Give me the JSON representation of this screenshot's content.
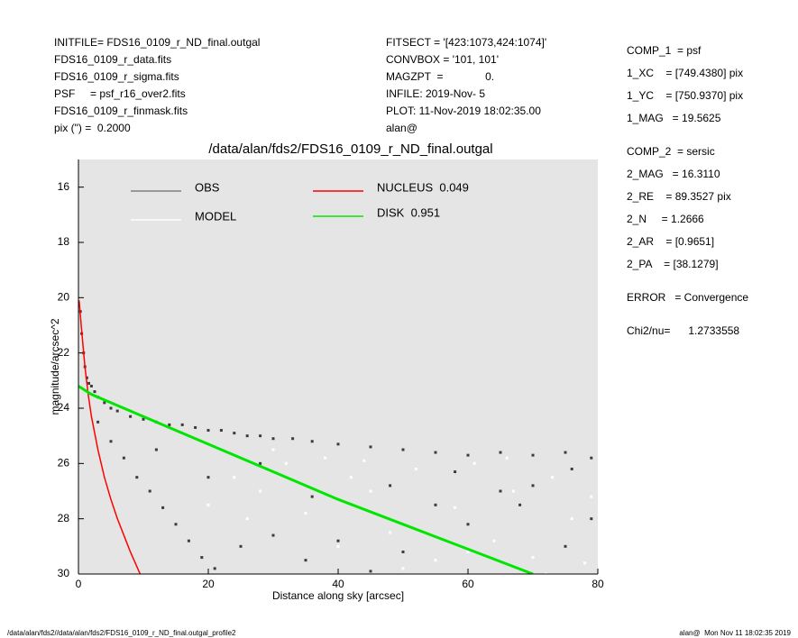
{
  "header": {
    "left": [
      "INITFILE= FDS16_0109_r_ND_final.outgal",
      "FDS16_0109_r_data.fits",
      "FDS16_0109_r_sigma.fits",
      "PSF     = psf_r16_over2.fits",
      "FDS16_0109_r_finmask.fits",
      "pix (\") =  0.2000"
    ],
    "middle": [
      "FITSECT = '[423:1073,424:1074]'",
      "CONVBOX = '101, 101'",
      "MAGZPT  =              0.",
      "INFILE: 2019-Nov- 5",
      "PLOT: 11-Nov-2019 18:02:35.00",
      "alan@"
    ]
  },
  "params": [
    "COMP_1  = psf",
    "1_XC    = [749.4380] pix",
    "1_YC    = [750.9370] pix",
    "1_MAG   = 19.5625",
    "COMP_2  = sersic",
    "2_MAG   = 16.3110",
    "2_RE    = 89.3527 pix",
    "2_N     = 1.2666",
    "2_AR    = [0.9651]",
    "2_PA    = [38.1279]",
    "ERROR   = Convergence",
    "Chi2/nu=      1.2733558"
  ],
  "footer": {
    "left": "/data/alan/fds2//data/alan/fds2/FDS16_0109_r_ND_final.outgal_profile2",
    "right": "alan@  Mon Nov 11 18:02:35 2019"
  },
  "chart_data": {
    "type": "scatter",
    "title": "/data/alan/fds2/FDS16_0109_r_ND_final.outgal",
    "x_label": "Distance along sky [arcsec]",
    "y_label": "magnitude/arcsec^2",
    "xlim": [
      0,
      80
    ],
    "xticks": [
      0,
      20,
      40,
      60,
      80
    ],
    "ylim": [
      15,
      30
    ],
    "yticks": [
      16,
      18,
      20,
      22,
      24,
      26,
      28,
      30
    ],
    "y_inverted": true,
    "grid": false,
    "series": [
      {
        "name": "OBS",
        "type": "scatter",
        "color": "#808080",
        "point_color": "#3c3c3c",
        "x": [
          0.3,
          0.5,
          0.8,
          1,
          1.3,
          1.6,
          2,
          2.5,
          3,
          4,
          5,
          6,
          8,
          10,
          12,
          14,
          16,
          18,
          20,
          22,
          24,
          26,
          28,
          30,
          33,
          36,
          40,
          45,
          50,
          55,
          60,
          65,
          70,
          75,
          79,
          3,
          5,
          7,
          9,
          11,
          13,
          15,
          17,
          19,
          21,
          25,
          30,
          35,
          40,
          45,
          50,
          55,
          60,
          65,
          70,
          75,
          79,
          12,
          20,
          28,
          36,
          48,
          58,
          68,
          76
        ],
        "values": [
          20.5,
          21.3,
          22,
          22.5,
          22.9,
          23.1,
          23.2,
          23.4,
          23.6,
          23.8,
          24,
          24.1,
          24.3,
          24.4,
          24.5,
          24.6,
          24.6,
          24.7,
          24.8,
          24.8,
          24.9,
          25,
          25,
          25.1,
          25.1,
          25.2,
          25.3,
          25.4,
          25.5,
          25.6,
          25.7,
          25.6,
          25.7,
          25.6,
          25.8,
          24.5,
          25.2,
          25.8,
          26.5,
          27,
          27.6,
          28.2,
          28.8,
          29.4,
          29.8,
          29,
          28.6,
          29.5,
          28.8,
          29.9,
          29.2,
          27.5,
          28.2,
          27,
          26.8,
          29,
          28,
          25.5,
          26.5,
          26,
          27.2,
          26.8,
          26.3,
          27.5,
          26.2
        ]
      },
      {
        "name": "MODEL",
        "type": "scatter",
        "color": "#ffffff",
        "point_color": "#ffffff",
        "x": [
          20,
          24,
          28,
          32,
          35,
          38,
          42,
          45,
          48,
          52,
          55,
          58,
          61,
          64,
          67,
          70,
          73,
          76,
          79,
          30,
          40,
          50,
          60,
          72,
          78,
          44,
          26,
          66
        ],
        "values": [
          27.5,
          26.5,
          27,
          26,
          27.8,
          25.8,
          26.5,
          27,
          28.5,
          26.2,
          29.5,
          27.6,
          26,
          28.8,
          27,
          29.4,
          26.5,
          28,
          27.2,
          25.5,
          29,
          29.8,
          29.2,
          30,
          29.6,
          25.9,
          28,
          25.8
        ]
      },
      {
        "name": "NUCLEUS  0.049",
        "type": "line",
        "color": "#ff0000",
        "x": [
          0.1,
          0.5,
          1,
          1.5,
          2,
          3,
          4,
          5,
          6,
          7,
          8,
          9.5
        ],
        "values": [
          20.1,
          21.2,
          22.5,
          23.5,
          24.3,
          25.5,
          26.5,
          27.3,
          28,
          28.6,
          29.2,
          30
        ]
      },
      {
        "name": "DISK  0.951",
        "type": "line",
        "color": "#00e600",
        "x": [
          0,
          2,
          7,
          10,
          20,
          30,
          40,
          50,
          60,
          70
        ],
        "values": [
          23.2,
          23.5,
          24,
          24.3,
          25.3,
          26.3,
          27.3,
          28.2,
          29.1,
          30
        ]
      }
    ]
  }
}
